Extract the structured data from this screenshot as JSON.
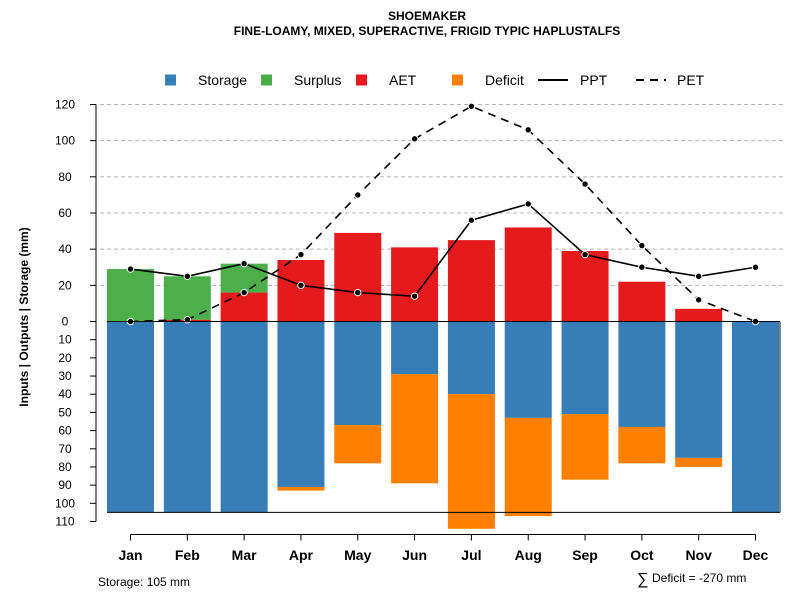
{
  "chart_data": {
    "type": "bar",
    "title": "SHOEMAKER",
    "subtitle": "FINE-LOAMY, MIXED, SUPERACTIVE, FRIGID TYPIC HAPLUSTALFS",
    "ylabel": "Inputs | Outputs | Storage    (mm)",
    "categories": [
      "Jan",
      "Feb",
      "Mar",
      "Apr",
      "May",
      "Jun",
      "Jul",
      "Aug",
      "Sep",
      "Oct",
      "Nov",
      "Dec"
    ],
    "upper_ylim": [
      0,
      120
    ],
    "upper_ticks": [
      "0",
      "20",
      "40",
      "60",
      "80",
      "100",
      "120"
    ],
    "lower_ylim": [
      0,
      110
    ],
    "lower_ticks": [
      "0",
      "10",
      "20",
      "30",
      "40",
      "50",
      "60",
      "70",
      "80",
      "90",
      "100",
      "110"
    ],
    "storage_capacity": 105,
    "legend": [
      {
        "key": "storage",
        "label": "Storage",
        "kind": "box",
        "color": "#377EB8"
      },
      {
        "key": "surplus",
        "label": "Surplus",
        "kind": "box",
        "color": "#4DAF4A"
      },
      {
        "key": "aet",
        "label": "AET",
        "kind": "box",
        "color": "#E41A1C"
      },
      {
        "key": "deficit",
        "label": "Deficit",
        "kind": "box",
        "color": "#FF7F00"
      },
      {
        "key": "ppt",
        "label": "PPT",
        "kind": "solid",
        "color": "#000000"
      },
      {
        "key": "pet",
        "label": "PET",
        "kind": "dashed",
        "color": "#000000"
      }
    ],
    "series": [
      {
        "name": "AET",
        "values": [
          0,
          1,
          16,
          34,
          49,
          41,
          45,
          52,
          39,
          22,
          7,
          0
        ]
      },
      {
        "name": "Surplus",
        "values": [
          29,
          24,
          16,
          0,
          0,
          0,
          0,
          0,
          0,
          0,
          0,
          0
        ]
      },
      {
        "name": "Storage",
        "values": [
          105,
          105,
          105,
          91,
          57,
          29,
          40,
          53,
          51,
          58,
          75,
          105
        ]
      },
      {
        "name": "Deficit",
        "values": [
          0,
          0,
          0,
          2,
          21,
          60,
          74,
          54,
          36,
          20,
          5,
          0
        ]
      },
      {
        "name": "PPT",
        "values": [
          29,
          25,
          32,
          20,
          16,
          14,
          56,
          65,
          37,
          30,
          25,
          30
        ]
      },
      {
        "name": "PET",
        "values": [
          0,
          1,
          16,
          37,
          70,
          101,
          119,
          106,
          76,
          42,
          12,
          0
        ]
      }
    ]
  },
  "footer": {
    "storage_label": "Storage: 105 mm",
    "deficit_symbol": "∑",
    "deficit_label": "Deficit = -270 mm"
  }
}
